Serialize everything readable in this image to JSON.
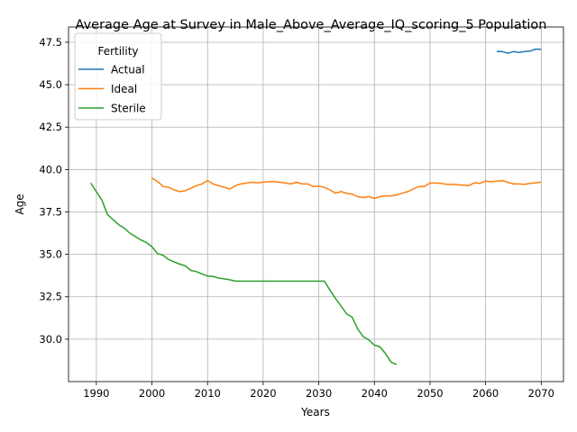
{
  "chart_data": {
    "type": "line",
    "title": "Average Age at Survey in Male_Above_Average_IQ_scoring_5 Population",
    "xlabel": "Years",
    "ylabel": "Age",
    "xlim": [
      1985,
      2074
    ],
    "ylim": [
      27.5,
      48.4
    ],
    "grid": true,
    "xticks": [
      1990,
      2000,
      2010,
      2020,
      2030,
      2040,
      2050,
      2060,
      2070
    ],
    "yticks": [
      30.0,
      32.5,
      35.0,
      37.5,
      40.0,
      42.5,
      45.0,
      47.5
    ],
    "legend": {
      "title": "Fertility",
      "placement": "top-left",
      "entries": [
        "Actual",
        "Ideal",
        "Sterile"
      ]
    },
    "series": [
      {
        "name": "Actual",
        "color": "#1f77b4",
        "x": [
          2062,
          2063,
          2064,
          2065,
          2066,
          2067,
          2068,
          2069,
          2070
        ],
        "y": [
          46.95,
          46.95,
          46.85,
          46.95,
          46.9,
          46.95,
          46.98,
          47.1,
          47.08
        ]
      },
      {
        "name": "Ideal",
        "color": "#ff7f0e",
        "x": [
          2000,
          2001,
          2002,
          2003,
          2004,
          2005,
          2006,
          2007,
          2008,
          2009,
          2010,
          2011,
          2012,
          2013,
          2014,
          2015,
          2016,
          2017,
          2018,
          2019,
          2020,
          2021,
          2022,
          2023,
          2024,
          2025,
          2026,
          2027,
          2028,
          2029,
          2030,
          2031,
          2032,
          2033,
          2034,
          2035,
          2036,
          2037,
          2038,
          2039,
          2040,
          2041,
          2042,
          2043,
          2044,
          2045,
          2046,
          2047,
          2048,
          2049,
          2050,
          2051,
          2052,
          2053,
          2054,
          2055,
          2056,
          2057,
          2058,
          2059,
          2060,
          2061,
          2062,
          2063,
          2064,
          2065,
          2066,
          2067,
          2068,
          2069,
          2070
        ],
        "y": [
          39.5,
          39.3,
          39.0,
          38.95,
          38.8,
          38.7,
          38.75,
          38.9,
          39.05,
          39.15,
          39.35,
          39.15,
          39.05,
          38.95,
          38.85,
          39.05,
          39.15,
          39.2,
          39.25,
          39.22,
          39.25,
          39.28,
          39.28,
          39.25,
          39.2,
          39.15,
          39.25,
          39.15,
          39.15,
          39.0,
          39.02,
          38.95,
          38.8,
          38.6,
          38.7,
          38.6,
          38.55,
          38.4,
          38.35,
          38.4,
          38.3,
          38.4,
          38.45,
          38.45,
          38.5,
          38.6,
          38.7,
          38.85,
          39.0,
          39.0,
          39.2,
          39.2,
          39.18,
          39.12,
          39.12,
          39.1,
          39.08,
          39.05,
          39.22,
          39.18,
          39.32,
          39.28,
          39.32,
          39.35,
          39.25,
          39.15,
          39.15,
          39.12,
          39.18,
          39.22,
          39.25
        ]
      },
      {
        "name": "Sterile",
        "color": "#2ca02c",
        "x": [
          1989,
          1990,
          1991,
          1992,
          1993,
          1994,
          1995,
          1996,
          1997,
          1998,
          1999,
          2000,
          2001,
          2002,
          2003,
          2004,
          2005,
          2006,
          2007,
          2008,
          2009,
          2010,
          2011,
          2012,
          2013,
          2014,
          2015,
          2016,
          2017,
          2018,
          2019,
          2020,
          2021,
          2022,
          2023,
          2024,
          2025,
          2026,
          2027,
          2028,
          2029,
          2030,
          2031,
          2032,
          2033,
          2034,
          2035,
          2036,
          2037,
          2038,
          2039,
          2040,
          2041,
          2042,
          2043,
          2044
        ],
        "y": [
          39.2,
          38.7,
          38.2,
          37.35,
          37.05,
          36.75,
          36.55,
          36.25,
          36.05,
          35.85,
          35.7,
          35.45,
          35.05,
          34.95,
          34.7,
          34.55,
          34.42,
          34.32,
          34.05,
          33.98,
          33.85,
          33.72,
          33.7,
          33.6,
          33.55,
          33.5,
          33.42,
          33.42,
          33.42,
          33.42,
          33.42,
          33.42,
          33.42,
          33.42,
          33.42,
          33.42,
          33.42,
          33.42,
          33.42,
          33.42,
          33.42,
          33.42,
          33.42,
          32.9,
          32.4,
          31.95,
          31.5,
          31.3,
          30.6,
          30.15,
          29.95,
          29.65,
          29.55,
          29.15,
          28.65,
          28.5
        ]
      }
    ]
  }
}
